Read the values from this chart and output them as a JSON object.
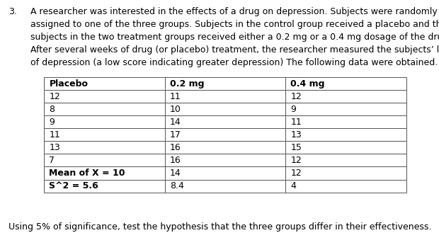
{
  "question_number": "3.",
  "paragraph": "A researcher was interested in the effects of a drug on depression. Subjects were randomly\nassigned to one of the three groups. Subjects in the control group received a placebo and the\nsubjects in the two treatment groups received either a 0.2 mg or a 0.4 mg dosage of the drug.\nAfter several weeks of drug (or placebo) treatment, the researcher measured the subjects’ level\nof depression (a low score indicating greater depression) The following data were obtained.",
  "footer": "Using 5% of significance, test the hypothesis that the three groups differ in their effectiveness.",
  "table_headers": [
    "Placebo",
    "0.2 mg",
    "0.4 mg"
  ],
  "table_data": [
    [
      "12",
      "11",
      "12"
    ],
    [
      "8",
      "10",
      "9"
    ],
    [
      "9",
      "14",
      "11"
    ],
    [
      "11",
      "17",
      "13"
    ],
    [
      "13",
      "16",
      "15"
    ],
    [
      "7",
      "16",
      "12"
    ],
    [
      "Mean of X = 10",
      "14",
      "12"
    ],
    [
      "S^2 = 5.6",
      "8.4",
      "4"
    ]
  ],
  "bg_color": "#ffffff",
  "text_color": "#000000",
  "font_size_para": 9.0,
  "font_size_table": 9.0,
  "font_size_footer": 9.0
}
